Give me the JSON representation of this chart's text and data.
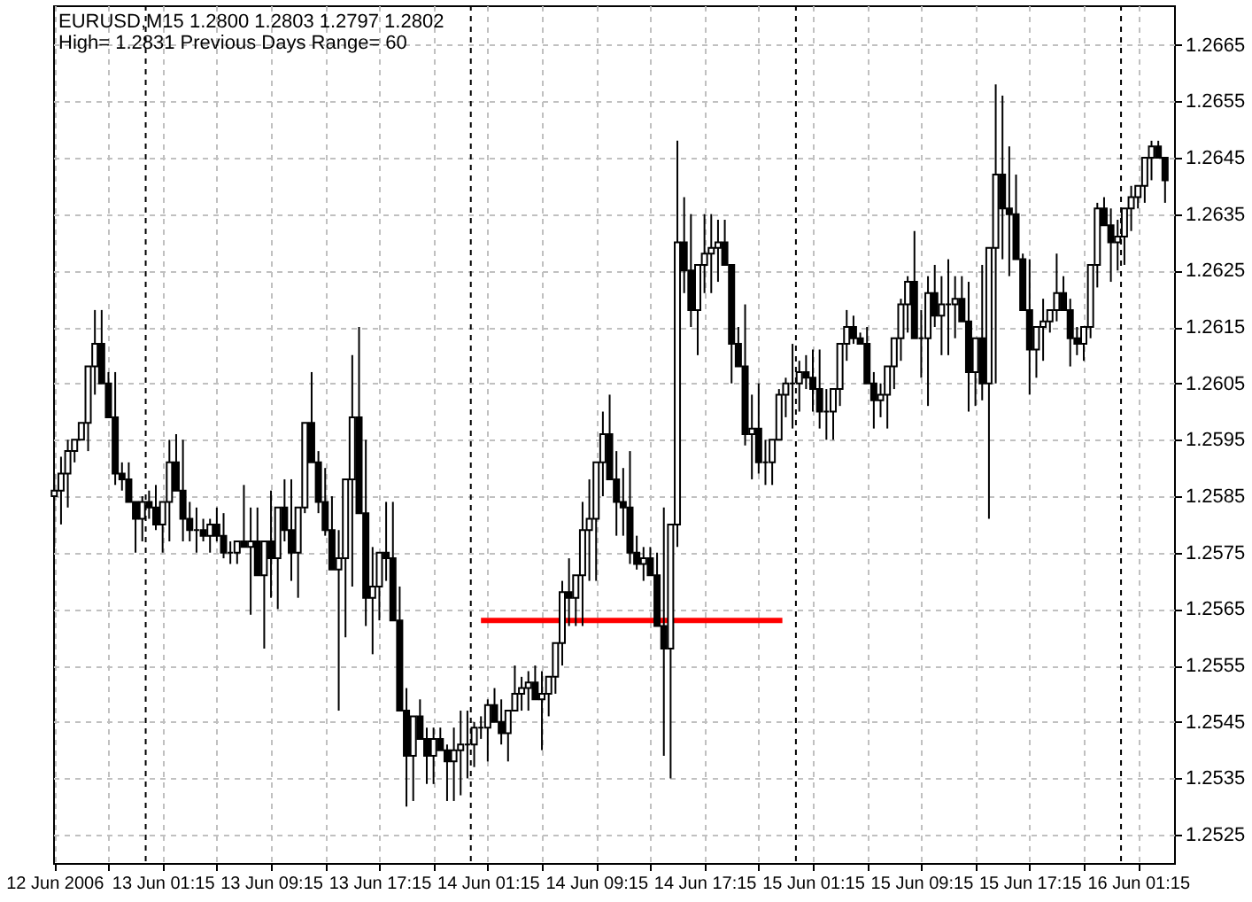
{
  "chart_data": {
    "type": "candlestick",
    "title": "EURUSD,M15  1.2800 1.2803 1.2797 1.2802",
    "subtitle": "High= 1.2831    Previous Days Range= 60",
    "series": [
      {
        "color": "#000000",
        "x": [
          "2006-06-12T17:15",
          "2006-06-12T17:45",
          "2006-06-12T18:15",
          "2006-06-12T18:45",
          "2006-06-12T19:15",
          "2006-06-12T19:45",
          "2006-06-12T20:15",
          "2006-06-12T20:45",
          "2006-06-12T21:15",
          "2006-06-12T21:45",
          "2006-06-12T22:15",
          "2006-06-12T22:45",
          "2006-06-12T23:15",
          "2006-06-12T23:45",
          "2006-06-13T00:15",
          "2006-06-13T00:45",
          "2006-06-13T01:15",
          "2006-06-13T01:45",
          "2006-06-13T02:15",
          "2006-06-13T02:45",
          "2006-06-13T03:15",
          "2006-06-13T03:45",
          "2006-06-13T04:15",
          "2006-06-13T04:45",
          "2006-06-13T05:15",
          "2006-06-13T05:45",
          "2006-06-13T06:15",
          "2006-06-13T06:45",
          "2006-06-13T07:15",
          "2006-06-13T07:45",
          "2006-06-13T08:15",
          "2006-06-13T08:45",
          "2006-06-13T09:15",
          "2006-06-13T09:45",
          "2006-06-13T10:15",
          "2006-06-13T10:45",
          "2006-06-13T11:15",
          "2006-06-13T11:45",
          "2006-06-13T12:15",
          "2006-06-13T12:45",
          "2006-06-13T13:15",
          "2006-06-13T13:45",
          "2006-06-13T14:15",
          "2006-06-13T14:45",
          "2006-06-13T15:15",
          "2006-06-13T15:45",
          "2006-06-13T16:15",
          "2006-06-13T16:45",
          "2006-06-13T17:15",
          "2006-06-13T17:45",
          "2006-06-13T18:15",
          "2006-06-13T18:45",
          "2006-06-13T19:15",
          "2006-06-13T19:45",
          "2006-06-13T20:15",
          "2006-06-13T20:45",
          "2006-06-13T21:15",
          "2006-06-13T21:45",
          "2006-06-13T22:15",
          "2006-06-13T22:45",
          "2006-06-13T23:15",
          "2006-06-13T23:45",
          "2006-06-14T00:15",
          "2006-06-14T00:45",
          "2006-06-14T01:15",
          "2006-06-14T01:45",
          "2006-06-14T02:15",
          "2006-06-14T02:45",
          "2006-06-14T03:15",
          "2006-06-14T03:45",
          "2006-06-14T04:15",
          "2006-06-14T04:45",
          "2006-06-14T05:15",
          "2006-06-14T05:45",
          "2006-06-14T06:15",
          "2006-06-14T06:45",
          "2006-06-14T07:15",
          "2006-06-14T07:45",
          "2006-06-14T08:15",
          "2006-06-14T08:45",
          "2006-06-14T09:15",
          "2006-06-14T09:45",
          "2006-06-14T10:15",
          "2006-06-14T10:45",
          "2006-06-14T11:15",
          "2006-06-14T11:45",
          "2006-06-14T12:15",
          "2006-06-14T12:45",
          "2006-06-14T13:15",
          "2006-06-14T13:45",
          "2006-06-14T14:15",
          "2006-06-14T14:45",
          "2006-06-14T15:15",
          "2006-06-14T15:45",
          "2006-06-14T16:15",
          "2006-06-14T16:45",
          "2006-06-14T17:15",
          "2006-06-14T17:45",
          "2006-06-14T18:15",
          "2006-06-14T18:45",
          "2006-06-14T19:15",
          "2006-06-14T19:45",
          "2006-06-14T20:15",
          "2006-06-14T20:45",
          "2006-06-14T21:15",
          "2006-06-14T21:45",
          "2006-06-14T22:15",
          "2006-06-14T22:45",
          "2006-06-14T23:15",
          "2006-06-14T23:45",
          "2006-06-15T00:15",
          "2006-06-15T00:45",
          "2006-06-15T01:15",
          "2006-06-15T01:45",
          "2006-06-15T02:15",
          "2006-06-15T02:45",
          "2006-06-15T03:15",
          "2006-06-15T03:45",
          "2006-06-15T04:15",
          "2006-06-15T04:45",
          "2006-06-15T05:15",
          "2006-06-15T05:45",
          "2006-06-15T06:15",
          "2006-06-15T06:45",
          "2006-06-15T07:15",
          "2006-06-15T07:45",
          "2006-06-15T08:15",
          "2006-06-15T08:45",
          "2006-06-15T09:15",
          "2006-06-15T09:45",
          "2006-06-15T10:15",
          "2006-06-15T10:45",
          "2006-06-15T11:15",
          "2006-06-15T11:45",
          "2006-06-15T12:15",
          "2006-06-15T12:45",
          "2006-06-15T13:15",
          "2006-06-15T13:45",
          "2006-06-15T14:15",
          "2006-06-15T14:45",
          "2006-06-15T15:15",
          "2006-06-15T15:45",
          "2006-06-15T16:15",
          "2006-06-15T16:45",
          "2006-06-15T17:15",
          "2006-06-15T17:45",
          "2006-06-15T18:15",
          "2006-06-15T18:45",
          "2006-06-15T19:15",
          "2006-06-15T19:45",
          "2006-06-15T20:15",
          "2006-06-15T20:45",
          "2006-06-15T21:15",
          "2006-06-15T21:45",
          "2006-06-15T22:15",
          "2006-06-15T22:45",
          "2006-06-15T23:15",
          "2006-06-15T23:45",
          "2006-06-16T00:15",
          "2006-06-16T00:45",
          "2006-06-16T01:15",
          "2006-06-16T01:45",
          "2006-06-16T02:15",
          "2006-06-16T02:45",
          "2006-06-16T03:15"
        ],
        "ohlc": [
          [
            1.2585,
            1.2589,
            1.2576,
            1.2586
          ],
          [
            1.2586,
            1.2592,
            1.258,
            1.2589
          ],
          [
            1.2589,
            1.2595,
            1.2583,
            1.2593
          ],
          [
            1.2593,
            1.2595,
            1.2591,
            1.2595
          ],
          [
            1.2595,
            1.2598,
            1.2595,
            1.2598
          ],
          [
            1.2598,
            1.2608,
            1.2593,
            1.2608
          ],
          [
            1.2608,
            1.2618,
            1.2603,
            1.2612
          ],
          [
            1.2612,
            1.2618,
            1.2605,
            1.2605
          ],
          [
            1.2605,
            1.2607,
            1.2599,
            1.2599
          ],
          [
            1.2599,
            1.2607,
            1.2587,
            1.2589
          ],
          [
            1.2589,
            1.2591,
            1.2586,
            1.2588
          ],
          [
            1.2588,
            1.2591,
            1.2584,
            1.2584
          ],
          [
            1.2584,
            1.2584,
            1.2575,
            1.2581
          ],
          [
            1.2581,
            1.2585,
            1.2577,
            1.2584
          ],
          [
            1.2584,
            1.2586,
            1.2581,
            1.2583
          ],
          [
            1.2583,
            1.2587,
            1.2579,
            1.258
          ],
          [
            1.258,
            1.2584,
            1.2575,
            1.2584
          ],
          [
            1.2584,
            1.2595,
            1.2577,
            1.2591
          ],
          [
            1.2591,
            1.2596,
            1.2586,
            1.2586
          ],
          [
            1.2586,
            1.2595,
            1.2577,
            1.2581
          ],
          [
            1.2581,
            1.2584,
            1.2577,
            1.2579
          ],
          [
            1.2579,
            1.2583,
            1.2575,
            1.2579
          ],
          [
            1.2579,
            1.2581,
            1.2577,
            1.2578
          ],
          [
            1.2578,
            1.2581,
            1.2575,
            1.258
          ],
          [
            1.258,
            1.2583,
            1.2577,
            1.2578
          ],
          [
            1.2578,
            1.2582,
            1.2574,
            1.2575
          ],
          [
            1.2575,
            1.2577,
            1.2573,
            1.2575
          ],
          [
            1.2575,
            1.2577,
            1.2573,
            1.2577
          ],
          [
            1.2577,
            1.2587,
            1.2576,
            1.2576
          ],
          [
            1.2576,
            1.2583,
            1.2564,
            1.2577
          ],
          [
            1.2577,
            1.2583,
            1.2571,
            1.2571
          ],
          [
            1.2571,
            1.2577,
            1.2558,
            1.2577
          ],
          [
            1.2577,
            1.2586,
            1.2567,
            1.2574
          ],
          [
            1.2574,
            1.2583,
            1.2565,
            1.2583
          ],
          [
            1.2583,
            1.2588,
            1.2577,
            1.2579
          ],
          [
            1.2579,
            1.2588,
            1.257,
            1.2575
          ],
          [
            1.2575,
            1.2583,
            1.2567,
            1.2583
          ],
          [
            1.2583,
            1.2598,
            1.2582,
            1.2598
          ],
          [
            1.2598,
            1.2607,
            1.2591,
            1.2591
          ],
          [
            1.2591,
            1.2593,
            1.2582,
            1.2584
          ],
          [
            1.2584,
            1.259,
            1.2578,
            1.2579
          ],
          [
            1.2579,
            1.2585,
            1.2572,
            1.2572
          ],
          [
            1.2572,
            1.2579,
            1.2547,
            1.2574
          ],
          [
            1.2574,
            1.2588,
            1.256,
            1.2588
          ],
          [
            1.2588,
            1.261,
            1.2569,
            1.2599
          ],
          [
            1.2599,
            1.2615,
            1.2582,
            1.2582
          ],
          [
            1.2582,
            1.2595,
            1.2562,
            1.2567
          ],
          [
            1.2567,
            1.2576,
            1.2557,
            1.2569
          ],
          [
            1.2569,
            1.2575,
            1.2563,
            1.2575
          ],
          [
            1.2575,
            1.2584,
            1.257,
            1.2574
          ],
          [
            1.2574,
            1.2584,
            1.2563,
            1.2563
          ],
          [
            1.2563,
            1.2569,
            1.2547,
            1.2547
          ],
          [
            1.2547,
            1.2551,
            1.253,
            1.2539
          ],
          [
            1.2539,
            1.2546,
            1.2531,
            1.2546
          ],
          [
            1.2546,
            1.2549,
            1.2542,
            1.2542
          ],
          [
            1.2542,
            1.2544,
            1.2534,
            1.2539
          ],
          [
            1.2539,
            1.2544,
            1.2534,
            1.2542
          ],
          [
            1.2542,
            1.2544,
            1.254,
            1.254
          ],
          [
            1.254,
            1.2541,
            1.2531,
            1.2538
          ],
          [
            1.2538,
            1.2544,
            1.2531,
            1.254
          ],
          [
            1.254,
            1.2547,
            1.2532,
            1.2541
          ],
          [
            1.2541,
            1.2547,
            1.2535,
            1.2541
          ],
          [
            1.2541,
            1.2545,
            1.2537,
            1.2544
          ],
          [
            1.2544,
            1.2546,
            1.2542,
            1.2544
          ],
          [
            1.2544,
            1.2549,
            1.2538,
            1.2548
          ],
          [
            1.2548,
            1.2551,
            1.2545,
            1.2545
          ],
          [
            1.2545,
            1.2549,
            1.2541,
            1.2543
          ],
          [
            1.2543,
            1.2547,
            1.2538,
            1.2547
          ],
          [
            1.2547,
            1.2555,
            1.2547,
            1.255
          ],
          [
            1.255,
            1.2553,
            1.2547,
            1.2551
          ],
          [
            1.2551,
            1.2554,
            1.2547,
            1.2552
          ],
          [
            1.2552,
            1.2555,
            1.2549,
            1.2549
          ],
          [
            1.2549,
            1.2554,
            1.254,
            1.255
          ],
          [
            1.255,
            1.2553,
            1.2546,
            1.2553
          ],
          [
            1.2553,
            1.2559,
            1.255,
            1.2559
          ],
          [
            1.2559,
            1.257,
            1.2555,
            1.2568
          ],
          [
            1.2568,
            1.2574,
            1.2562,
            1.2567
          ],
          [
            1.2567,
            1.2571,
            1.2562,
            1.2571
          ],
          [
            1.2571,
            1.2584,
            1.2562,
            1.2579
          ],
          [
            1.2579,
            1.2588,
            1.257,
            1.2581
          ],
          [
            1.2581,
            1.2591,
            1.257,
            1.2591
          ],
          [
            1.2591,
            1.26,
            1.2585,
            1.2596
          ],
          [
            1.2596,
            1.2603,
            1.2588,
            1.2588
          ],
          [
            1.2588,
            1.2593,
            1.2578,
            1.2584
          ],
          [
            1.2584,
            1.259,
            1.2578,
            1.2583
          ],
          [
            1.2583,
            1.2593,
            1.2573,
            1.2575
          ],
          [
            1.2575,
            1.2578,
            1.2572,
            1.2573
          ],
          [
            1.2573,
            1.2576,
            1.257,
            1.2574
          ],
          [
            1.2574,
            1.2576,
            1.2571,
            1.2571
          ],
          [
            1.2571,
            1.2575,
            1.2562,
            1.2562
          ],
          [
            1.2562,
            1.2583,
            1.2539,
            1.2558
          ],
          [
            1.2558,
            1.258,
            1.2535,
            1.258
          ],
          [
            1.258,
            1.2648,
            1.2576,
            1.263
          ],
          [
            1.263,
            1.2638,
            1.2621,
            1.2625
          ],
          [
            1.2625,
            1.2635,
            1.2615,
            1.2618
          ],
          [
            1.2618,
            1.2626,
            1.261,
            1.2626
          ],
          [
            1.2626,
            1.2635,
            1.2621,
            1.2628
          ],
          [
            1.2628,
            1.2635,
            1.2621,
            1.2629
          ],
          [
            1.2629,
            1.2634,
            1.2623,
            1.263
          ],
          [
            1.263,
            1.2634,
            1.2626,
            1.2626
          ],
          [
            1.2626,
            1.2626,
            1.2605,
            1.2612
          ],
          [
            1.2612,
            1.2615,
            1.2608,
            1.2608
          ],
          [
            1.2608,
            1.2619,
            1.2594,
            1.2596
          ],
          [
            1.2596,
            1.2603,
            1.2588,
            1.2597
          ],
          [
            1.2597,
            1.2605,
            1.2589,
            1.2591
          ],
          [
            1.2591,
            1.2595,
            1.2587,
            1.2591
          ],
          [
            1.2591,
            1.2595,
            1.2587,
            1.2595
          ],
          [
            1.2595,
            1.2604,
            1.2595,
            1.2603
          ],
          [
            1.2603,
            1.2606,
            1.2599,
            1.2605
          ],
          [
            1.2605,
            1.2612,
            1.2597,
            1.2605
          ],
          [
            1.2605,
            1.2609,
            1.26,
            1.2607
          ],
          [
            1.2607,
            1.261,
            1.2604,
            1.2606
          ],
          [
            1.2606,
            1.2611,
            1.26,
            1.2604
          ],
          [
            1.2604,
            1.2611,
            1.2597,
            1.26
          ],
          [
            1.26,
            1.2604,
            1.2595,
            1.26
          ],
          [
            1.26,
            1.2604,
            1.2595,
            1.2604
          ],
          [
            1.2604,
            1.2612,
            1.2601,
            1.2612
          ],
          [
            1.2612,
            1.2618,
            1.2609,
            1.2615
          ],
          [
            1.2615,
            1.2617,
            1.2612,
            1.2613
          ],
          [
            1.2613,
            1.2614,
            1.2612,
            1.2612
          ],
          [
            1.2612,
            1.2615,
            1.2605,
            1.2605
          ],
          [
            1.2605,
            1.2607,
            1.2597,
            1.2602
          ],
          [
            1.2602,
            1.2605,
            1.2599,
            1.2603
          ],
          [
            1.2603,
            1.2608,
            1.2597,
            1.2608
          ],
          [
            1.2608,
            1.2613,
            1.2604,
            1.2613
          ],
          [
            1.2613,
            1.262,
            1.2609,
            1.2619
          ],
          [
            1.2619,
            1.2624,
            1.2614,
            1.2623
          ],
          [
            1.2623,
            1.2632,
            1.2613,
            1.2613
          ],
          [
            1.2613,
            1.2618,
            1.2606,
            1.2613
          ],
          [
            1.2613,
            1.2624,
            1.2601,
            1.2621
          ],
          [
            1.2621,
            1.2626,
            1.2615,
            1.2617
          ],
          [
            1.2617,
            1.2624,
            1.261,
            1.2619
          ],
          [
            1.2619,
            1.2627,
            1.261,
            1.2619
          ],
          [
            1.2619,
            1.2624,
            1.2613,
            1.262
          ],
          [
            1.262,
            1.2624,
            1.2616,
            1.2616
          ],
          [
            1.2616,
            1.2623,
            1.26,
            1.2607
          ],
          [
            1.2607,
            1.2613,
            1.2601,
            1.2613
          ],
          [
            1.2613,
            1.2626,
            1.2602,
            1.2605
          ],
          [
            1.2605,
            1.2629,
            1.2581,
            1.2629
          ],
          [
            1.2629,
            1.2658,
            1.2605,
            1.2642
          ],
          [
            1.2642,
            1.2656,
            1.2627,
            1.2636
          ],
          [
            1.2636,
            1.2647,
            1.2624,
            1.2635
          ],
          [
            1.2635,
            1.2642,
            1.2627,
            1.2627
          ],
          [
            1.2627,
            1.2628,
            1.2618,
            1.2618
          ],
          [
            1.2618,
            1.2627,
            1.2603,
            1.2611
          ],
          [
            1.2611,
            1.2615,
            1.2606,
            1.2615
          ],
          [
            1.2615,
            1.262,
            1.2609,
            1.2616
          ],
          [
            1.2616,
            1.2618,
            1.2614,
            1.2618
          ],
          [
            1.2618,
            1.2628,
            1.2616,
            1.2621
          ],
          [
            1.2621,
            1.2624,
            1.2618,
            1.2618
          ],
          [
            1.2618,
            1.262,
            1.2608,
            1.2613
          ],
          [
            1.2613,
            1.2615,
            1.261,
            1.2612
          ],
          [
            1.2612,
            1.2615,
            1.2609,
            1.2615
          ],
          [
            1.2615,
            1.2626,
            1.2613,
            1.2626
          ],
          [
            1.2626,
            1.2637,
            1.2622,
            1.2636
          ],
          [
            1.2636,
            1.2638,
            1.2633,
            1.2633
          ],
          [
            1.2633,
            1.2636,
            1.2623,
            1.263
          ],
          [
            1.263,
            1.2634,
            1.2625,
            1.2631
          ],
          [
            1.2631,
            1.2636,
            1.2626,
            1.2636
          ],
          [
            1.2636,
            1.264,
            1.2632,
            1.2638
          ],
          [
            1.2638,
            1.264,
            1.2636,
            1.264
          ],
          [
            1.264,
            1.2645,
            1.2637,
            1.2645
          ],
          [
            1.2645,
            1.2648,
            1.2641,
            1.2647
          ],
          [
            1.2647,
            1.2648,
            1.2645,
            1.2645
          ],
          [
            1.2645,
            1.2645,
            1.2637,
            1.2641
          ]
        ]
      },
      {
        "type": "line",
        "color": "#ff0000",
        "x": [
          "2006-06-14T00:45",
          "2006-06-14T23:00"
        ],
        "values": [
          1.2563,
          1.2563
        ]
      }
    ],
    "xlim": [
      "2006-06-12T17:10",
      "2006-06-16T03:55"
    ],
    "xticks": [
      {
        "value": "2006-06-12T17:15",
        "label": "12 Jun 2006"
      },
      {
        "value": "2006-06-12T21:15",
        "label": null
      },
      {
        "value": "2006-06-13T01:15",
        "label": "13 Jun 01:15"
      },
      {
        "value": "2006-06-13T05:15",
        "label": null
      },
      {
        "value": "2006-06-13T09:15",
        "label": "13 Jun 09:15"
      },
      {
        "value": "2006-06-13T13:15",
        "label": null
      },
      {
        "value": "2006-06-13T17:15",
        "label": "13 Jun 17:15"
      },
      {
        "value": "2006-06-13T21:15",
        "label": null
      },
      {
        "value": "2006-06-14T01:15",
        "label": "14 Jun 01:15"
      },
      {
        "value": "2006-06-14T05:15",
        "label": null
      },
      {
        "value": "2006-06-14T09:15",
        "label": "14 Jun 09:15"
      },
      {
        "value": "2006-06-14T13:15",
        "label": null
      },
      {
        "value": "2006-06-14T17:15",
        "label": "14 Jun 17:15"
      },
      {
        "value": "2006-06-14T21:15",
        "label": null
      },
      {
        "value": "2006-06-15T01:15",
        "label": "15 Jun 01:15"
      },
      {
        "value": "2006-06-15T05:15",
        "label": null
      },
      {
        "value": "2006-06-15T09:15",
        "label": "15 Jun 09:15"
      },
      {
        "value": "2006-06-15T13:15",
        "label": null
      },
      {
        "value": "2006-06-15T17:15",
        "label": "15 Jun 17:15"
      },
      {
        "value": "2006-06-15T21:15",
        "label": null
      },
      {
        "value": "2006-06-16T01:15",
        "label": "16 Jun 01:15"
      }
    ],
    "ylim": [
      1.252,
      1.2672
    ],
    "yticks": [
      1.2525,
      1.2535,
      1.2545,
      1.2555,
      1.2565,
      1.2575,
      1.2585,
      1.2595,
      1.2605,
      1.2615,
      1.2625,
      1.2635,
      1.2645,
      1.2655,
      1.2665
    ],
    "grid": true,
    "ref_lines": [
      {
        "axis": "x",
        "value": "2006-06-13T00:00",
        "color": "#000000",
        "line_style": "dashed"
      },
      {
        "axis": "x",
        "value": "2006-06-14T00:00",
        "color": "#000000",
        "line_style": "dashed"
      },
      {
        "axis": "x",
        "value": "2006-06-15T00:00",
        "color": "#000000",
        "line_style": "dashed"
      },
      {
        "axis": "x",
        "value": "2006-06-16T00:00",
        "color": "#000000",
        "line_style": "dashed"
      }
    ]
  }
}
